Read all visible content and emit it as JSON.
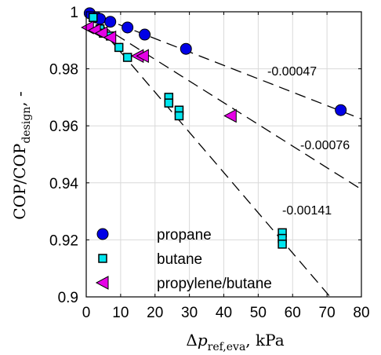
{
  "chart_data": {
    "type": "scatter",
    "xlim": [
      0,
      80
    ],
    "ylim": [
      0.9,
      1.0
    ],
    "x_ticks": [
      0,
      10,
      20,
      30,
      40,
      50,
      60,
      70,
      80
    ],
    "y_ticks": [
      0.9,
      0.92,
      0.94,
      0.96,
      0.98,
      1.0
    ],
    "x_tick_labels": [
      "0",
      "10",
      "20",
      "30",
      "40",
      "50",
      "60",
      "70",
      "80"
    ],
    "y_tick_labels": [
      "0.9",
      "0.92",
      "0.94",
      "0.96",
      "0.98",
      "1"
    ],
    "grid": true,
    "legend_position": "bottom-left",
    "series": [
      {
        "name": "propane",
        "marker": "circle",
        "color": "#0000e6",
        "points": [
          [
            1,
            0.9995
          ],
          [
            3,
            0.998
          ],
          [
            4,
            0.9975
          ],
          [
            7,
            0.9965
          ],
          [
            12,
            0.9945
          ],
          [
            17,
            0.992
          ],
          [
            29,
            0.987
          ],
          [
            74,
            0.9655
          ]
        ]
      },
      {
        "name": "butane",
        "marker": "square",
        "color": "#00e5ee",
        "points": [
          [
            2,
            0.998
          ],
          [
            4,
            0.994
          ],
          [
            5,
            0.9925
          ],
          [
            7,
            0.9915
          ],
          [
            9.5,
            0.9875
          ],
          [
            12,
            0.984
          ],
          [
            24,
            0.97
          ],
          [
            24,
            0.968
          ],
          [
            27,
            0.9655
          ],
          [
            27,
            0.9635
          ],
          [
            57,
            0.9225
          ],
          [
            57,
            0.9205
          ],
          [
            57,
            0.9185
          ]
        ]
      },
      {
        "name": "propylene/butane",
        "marker": "triangle-left",
        "color": "#e600e6",
        "points": [
          [
            0.5,
            0.9945
          ],
          [
            2.5,
            0.9935
          ],
          [
            4.5,
            0.9925
          ],
          [
            7,
            0.991
          ],
          [
            15,
            0.9845
          ],
          [
            16.5,
            0.9845
          ],
          [
            42,
            0.9635
          ]
        ]
      }
    ],
    "fit_lines": [
      {
        "label": "-0.00047",
        "slope": -0.00047,
        "intercept": 1.0,
        "x_range": [
          0,
          80
        ]
      },
      {
        "label": "-0.00076",
        "slope": -0.00076,
        "intercept": 0.9985,
        "x_range": [
          0,
          80
        ]
      },
      {
        "label": "-0.00141",
        "slope": -0.00141,
        "intercept": 1.0,
        "x_range": [
          0,
          71
        ]
      }
    ]
  }
}
